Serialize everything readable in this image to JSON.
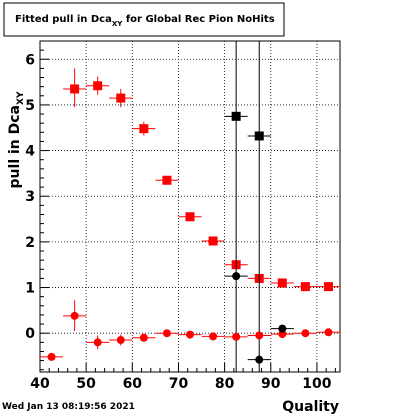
{
  "chart_data": {
    "type": "scatter",
    "title": {
      "main": "Fitted pull in Dca",
      "sub": "XY",
      "rest": " for Global Rec Pion NoHits"
    },
    "xlabel": "Quality",
    "ylabel": {
      "main": "pull in Dca",
      "sub": "XY"
    },
    "xlim": [
      40,
      105
    ],
    "ylim": [
      -0.85,
      6.4
    ],
    "xticks": [
      40,
      50,
      60,
      70,
      80,
      90,
      100
    ],
    "yticks": [
      0,
      1,
      2,
      3,
      4,
      5,
      6
    ],
    "grid": true,
    "date_stamp": "Wed Jan 13 08:19:56 2021",
    "colors": {
      "red": "#ff0000",
      "black": "#000000"
    },
    "series": [
      {
        "color": "red",
        "marker": "square",
        "points": [
          {
            "x": 47.5,
            "y": 5.35,
            "ylo": 4.95,
            "yhi": 5.8
          },
          {
            "x": 52.5,
            "y": 5.42,
            "ylo": 5.22,
            "yhi": 5.62
          },
          {
            "x": 57.5,
            "y": 5.15,
            "ylo": 4.95,
            "yhi": 5.35
          },
          {
            "x": 62.5,
            "y": 4.48,
            "ylo": 4.33,
            "yhi": 4.63
          },
          {
            "x": 67.5,
            "y": 3.35,
            "ylo": 3.3,
            "yhi": 3.4
          },
          {
            "x": 72.5,
            "y": 2.55,
            "ylo": 2.5,
            "yhi": 2.6
          },
          {
            "x": 77.5,
            "y": 2.02,
            "ylo": 1.97,
            "yhi": 2.07
          },
          {
            "x": 82.5,
            "y": 1.5,
            "ylo": 1.45,
            "yhi": 1.55
          },
          {
            "x": 87.5,
            "y": 1.2,
            "ylo": 1.15,
            "yhi": 1.25
          },
          {
            "x": 92.5,
            "y": 1.1,
            "ylo": 1.05,
            "yhi": 1.15
          },
          {
            "x": 97.5,
            "y": 1.02,
            "ylo": 0.98,
            "yhi": 1.06
          },
          {
            "x": 102.5,
            "y": 1.02,
            "ylo": 0.98,
            "yhi": 1.06
          }
        ]
      },
      {
        "color": "black",
        "marker": "square",
        "points": [
          {
            "x": 82.5,
            "y": 4.75,
            "ylo": -0.85,
            "yhi": 6.4
          },
          {
            "x": 87.5,
            "y": 4.32,
            "ylo": -0.85,
            "yhi": 6.4
          }
        ]
      },
      {
        "color": "red",
        "marker": "circle",
        "points": [
          {
            "x": 42.5,
            "y": -0.52,
            "ylo": -0.6,
            "yhi": -0.44
          },
          {
            "x": 47.5,
            "y": 0.38,
            "ylo": 0.05,
            "yhi": 0.72
          },
          {
            "x": 52.5,
            "y": -0.2,
            "ylo": -0.35,
            "yhi": -0.05
          },
          {
            "x": 57.5,
            "y": -0.15,
            "ylo": -0.27,
            "yhi": -0.03
          },
          {
            "x": 62.5,
            "y": -0.1,
            "ylo": -0.18,
            "yhi": -0.02
          },
          {
            "x": 67.5,
            "y": 0.0,
            "ylo": -0.05,
            "yhi": 0.05
          },
          {
            "x": 72.5,
            "y": -0.03,
            "ylo": -0.07,
            "yhi": 0.01
          },
          {
            "x": 77.5,
            "y": -0.07,
            "ylo": -0.11,
            "yhi": -0.03
          },
          {
            "x": 82.5,
            "y": -0.08,
            "ylo": -0.12,
            "yhi": -0.04
          },
          {
            "x": 87.5,
            "y": -0.05,
            "ylo": -0.09,
            "yhi": -0.01
          },
          {
            "x": 92.5,
            "y": -0.02,
            "ylo": -0.06,
            "yhi": 0.02
          },
          {
            "x": 97.5,
            "y": 0.0,
            "ylo": -0.04,
            "yhi": 0.04
          },
          {
            "x": 102.5,
            "y": 0.02,
            "ylo": -0.02,
            "yhi": 0.06
          }
        ]
      },
      {
        "color": "black",
        "marker": "circle",
        "points": [
          {
            "x": 82.5,
            "y": 1.25,
            "ylo": 1.2,
            "yhi": 1.3
          },
          {
            "x": 87.5,
            "y": -0.58,
            "ylo": -0.65,
            "yhi": -0.51
          },
          {
            "x": 92.5,
            "y": 0.1,
            "ylo": 0.06,
            "yhi": 0.14
          }
        ]
      }
    ]
  }
}
